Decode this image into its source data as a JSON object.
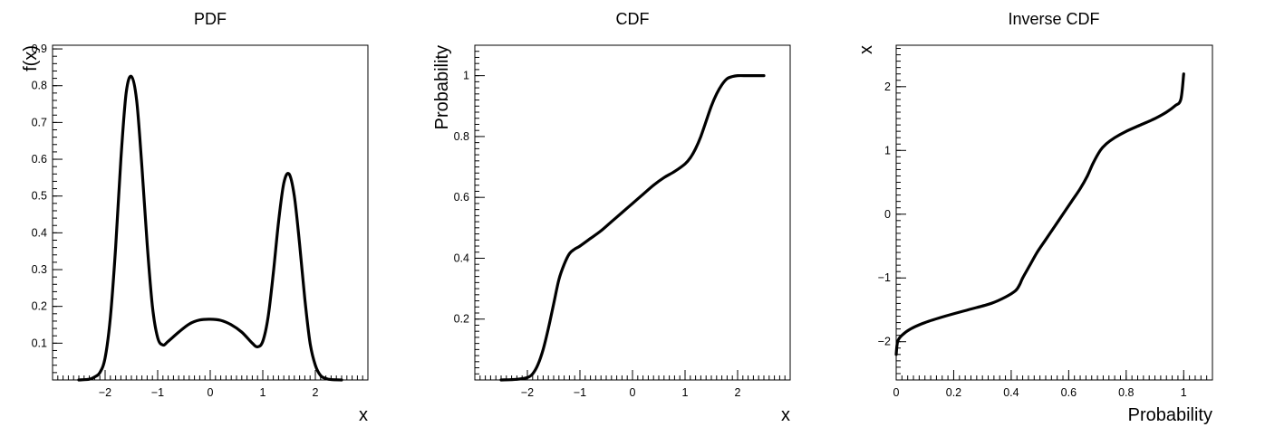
{
  "figure": {
    "background": "#ffffff",
    "line_color": "#000000"
  },
  "chart_data": [
    {
      "id": "pdf",
      "type": "line",
      "title": "PDF",
      "xlabel": "x",
      "ylabel": "f(x)",
      "xlim": [
        -3.0,
        3.0
      ],
      "ylim": [
        0.0,
        0.91
      ],
      "xticks": [
        -2,
        -1,
        0,
        1,
        2
      ],
      "xtick_labels": [
        "−2",
        "−1",
        "0",
        "1",
        "2"
      ],
      "yticks": [
        0.1,
        0.2,
        0.3,
        0.4,
        0.5,
        0.6,
        0.7,
        0.8,
        0.9
      ],
      "ytick_labels": [
        "0.1",
        "0.2",
        "0.3",
        "0.4",
        "0.5",
        "0.6",
        "0.7",
        "0.8",
        "0.9"
      ],
      "series": [
        {
          "x": [
            -2.5,
            -2.3,
            -2.2,
            -2.1,
            -2.0,
            -1.9,
            -1.8,
            -1.7,
            -1.6,
            -1.5,
            -1.4,
            -1.3,
            -1.2,
            -1.1,
            -1.0,
            -0.9,
            -0.8,
            -0.6,
            -0.4,
            -0.2,
            0.0,
            0.2,
            0.4,
            0.6,
            0.8,
            0.9,
            1.0,
            1.1,
            1.2,
            1.3,
            1.4,
            1.5,
            1.6,
            1.7,
            1.8,
            1.9,
            2.0,
            2.1,
            2.2,
            2.3,
            2.5
          ],
          "y": [
            0.0,
            0.002,
            0.008,
            0.02,
            0.06,
            0.17,
            0.36,
            0.6,
            0.78,
            0.825,
            0.76,
            0.58,
            0.37,
            0.2,
            0.115,
            0.095,
            0.105,
            0.13,
            0.152,
            0.163,
            0.165,
            0.162,
            0.15,
            0.13,
            0.1,
            0.09,
            0.105,
            0.17,
            0.29,
            0.43,
            0.535,
            0.56,
            0.5,
            0.37,
            0.22,
            0.1,
            0.04,
            0.012,
            0.004,
            0.001,
            0.0
          ]
        }
      ]
    },
    {
      "id": "cdf",
      "type": "line",
      "title": "CDF",
      "xlabel": "x",
      "ylabel": "Probability",
      "xlim": [
        -3.0,
        3.0
      ],
      "ylim": [
        0.0,
        1.1
      ],
      "xticks": [
        -2,
        -1,
        0,
        1,
        2
      ],
      "xtick_labels": [
        "−2",
        "−1",
        "0",
        "1",
        "2"
      ],
      "yticks": [
        0.2,
        0.4,
        0.6,
        0.8,
        1
      ],
      "ytick_labels": [
        "0.2",
        "0.4",
        "0.6",
        "0.8",
        "1"
      ],
      "series": [
        {
          "x": [
            -2.5,
            -2.2,
            -2.0,
            -1.9,
            -1.8,
            -1.7,
            -1.6,
            -1.5,
            -1.4,
            -1.3,
            -1.2,
            -1.1,
            -1.0,
            -0.8,
            -0.6,
            -0.4,
            -0.2,
            0.0,
            0.2,
            0.4,
            0.6,
            0.8,
            1.0,
            1.1,
            1.2,
            1.3,
            1.4,
            1.5,
            1.6,
            1.7,
            1.8,
            1.9,
            2.0,
            2.2,
            2.5
          ],
          "y": [
            0.0,
            0.002,
            0.008,
            0.02,
            0.05,
            0.1,
            0.17,
            0.25,
            0.33,
            0.38,
            0.415,
            0.43,
            0.44,
            0.465,
            0.49,
            0.52,
            0.55,
            0.58,
            0.61,
            0.64,
            0.665,
            0.685,
            0.71,
            0.73,
            0.76,
            0.8,
            0.85,
            0.9,
            0.94,
            0.97,
            0.99,
            0.997,
            1.0,
            1.0,
            1.0
          ]
        }
      ]
    },
    {
      "id": "inverse-cdf",
      "type": "line",
      "title": "Inverse CDF",
      "xlabel": "Probability",
      "ylabel": "x",
      "xlim": [
        0.0,
        1.1
      ],
      "ylim": [
        -2.6,
        2.65
      ],
      "xticks": [
        0,
        0.2,
        0.4,
        0.6,
        0.8,
        1
      ],
      "xtick_labels": [
        "0",
        "0.2",
        "0.4",
        "0.6",
        "0.8",
        "1"
      ],
      "yticks": [
        -2,
        -1,
        0,
        1,
        2
      ],
      "ytick_labels": [
        "−2",
        "−1",
        "0",
        "1",
        "2"
      ],
      "series": [
        {
          "x": [
            0.0,
            0.005,
            0.02,
            0.05,
            0.1,
            0.17,
            0.25,
            0.33,
            0.38,
            0.415,
            0.43,
            0.44,
            0.465,
            0.49,
            0.52,
            0.55,
            0.58,
            0.61,
            0.64,
            0.665,
            0.685,
            0.71,
            0.73,
            0.76,
            0.8,
            0.85,
            0.9,
            0.94,
            0.97,
            0.99,
            1.0
          ],
          "y": [
            -2.2,
            -2.0,
            -1.9,
            -1.8,
            -1.7,
            -1.6,
            -1.5,
            -1.4,
            -1.3,
            -1.2,
            -1.1,
            -1.0,
            -0.8,
            -0.6,
            -0.4,
            -0.2,
            0.0,
            0.2,
            0.4,
            0.6,
            0.8,
            1.0,
            1.1,
            1.2,
            1.3,
            1.4,
            1.5,
            1.6,
            1.7,
            1.8,
            2.2
          ]
        }
      ]
    }
  ]
}
